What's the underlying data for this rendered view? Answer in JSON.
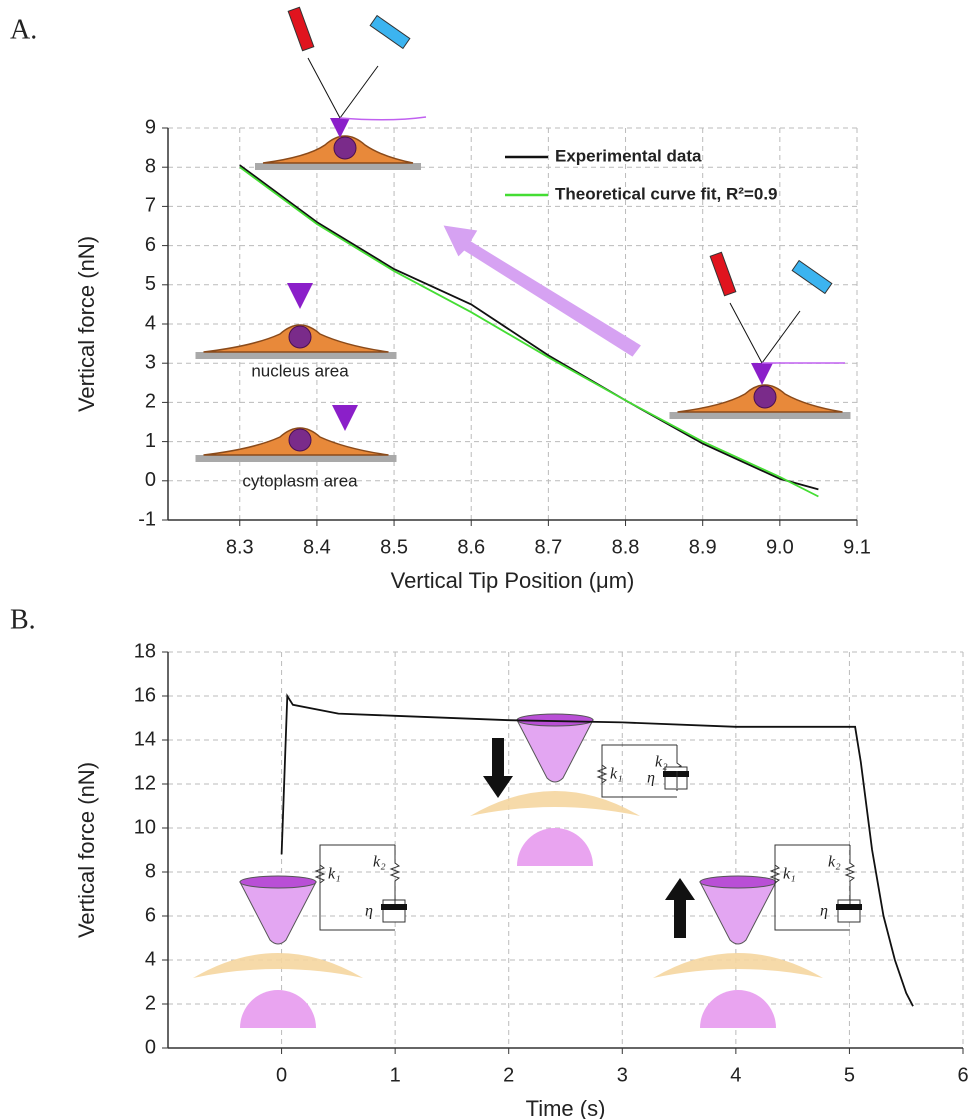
{
  "chart_data": [
    {
      "type": "line",
      "panel_label": "A.",
      "x_label": "Vertical Tip Position (μm)",
      "y_label": "Vertical force (nN)",
      "x": [
        8.3,
        8.4,
        8.5,
        8.6,
        8.7,
        8.8,
        8.9,
        9.0,
        9.05
      ],
      "series": [
        {
          "name": "Experimental data",
          "color": "#111111",
          "values": [
            8.05,
            6.6,
            5.4,
            4.5,
            3.2,
            2.05,
            0.95,
            0.05,
            -0.22
          ]
        },
        {
          "name": "Theoretical curve fit, R²=0.9",
          "color": "#44dd33",
          "values": [
            8.0,
            6.55,
            5.35,
            4.3,
            3.15,
            2.05,
            1.0,
            0.1,
            -0.4
          ]
        }
      ],
      "xlim": [
        8.207,
        9.1
      ],
      "ylim": [
        -1,
        9
      ],
      "xticks": [
        8.3,
        8.4,
        8.5,
        8.6,
        8.7,
        8.8,
        8.9,
        {
          "value": 9,
          "label": "9.0"
        },
        9.1
      ],
      "yticks": [
        -1,
        0,
        1,
        2,
        3,
        4,
        5,
        6,
        7,
        8,
        9
      ],
      "grid": true,
      "legend": "upper right",
      "annotations": [
        "nucleus area",
        "cytoplasm area"
      ]
    },
    {
      "type": "line",
      "panel_label": "B.",
      "x_label": "Time (s)",
      "y_label": "Vertical force (nN)",
      "x": [
        0,
        0.05,
        0.1,
        0.5,
        1,
        2,
        3,
        4,
        5.05,
        5.1,
        5.2,
        5.3,
        5.4,
        5.5,
        5.56
      ],
      "series": [
        {
          "color": "#111111",
          "values": [
            8.8,
            16,
            15.6,
            15.2,
            15.1,
            14.9,
            14.8,
            14.6,
            14.6,
            13,
            9,
            6,
            4,
            2.5,
            1.9
          ]
        }
      ],
      "xlim": [
        -1,
        6
      ],
      "ylim": [
        0,
        18
      ],
      "xticks": [
        0,
        1,
        2,
        3,
        4,
        5,
        6
      ],
      "yticks": [
        0,
        2,
        4,
        6,
        8,
        10,
        12,
        14,
        16,
        18
      ],
      "grid": true,
      "annotations": [
        "k₁",
        "k₂",
        "η"
      ]
    }
  ]
}
